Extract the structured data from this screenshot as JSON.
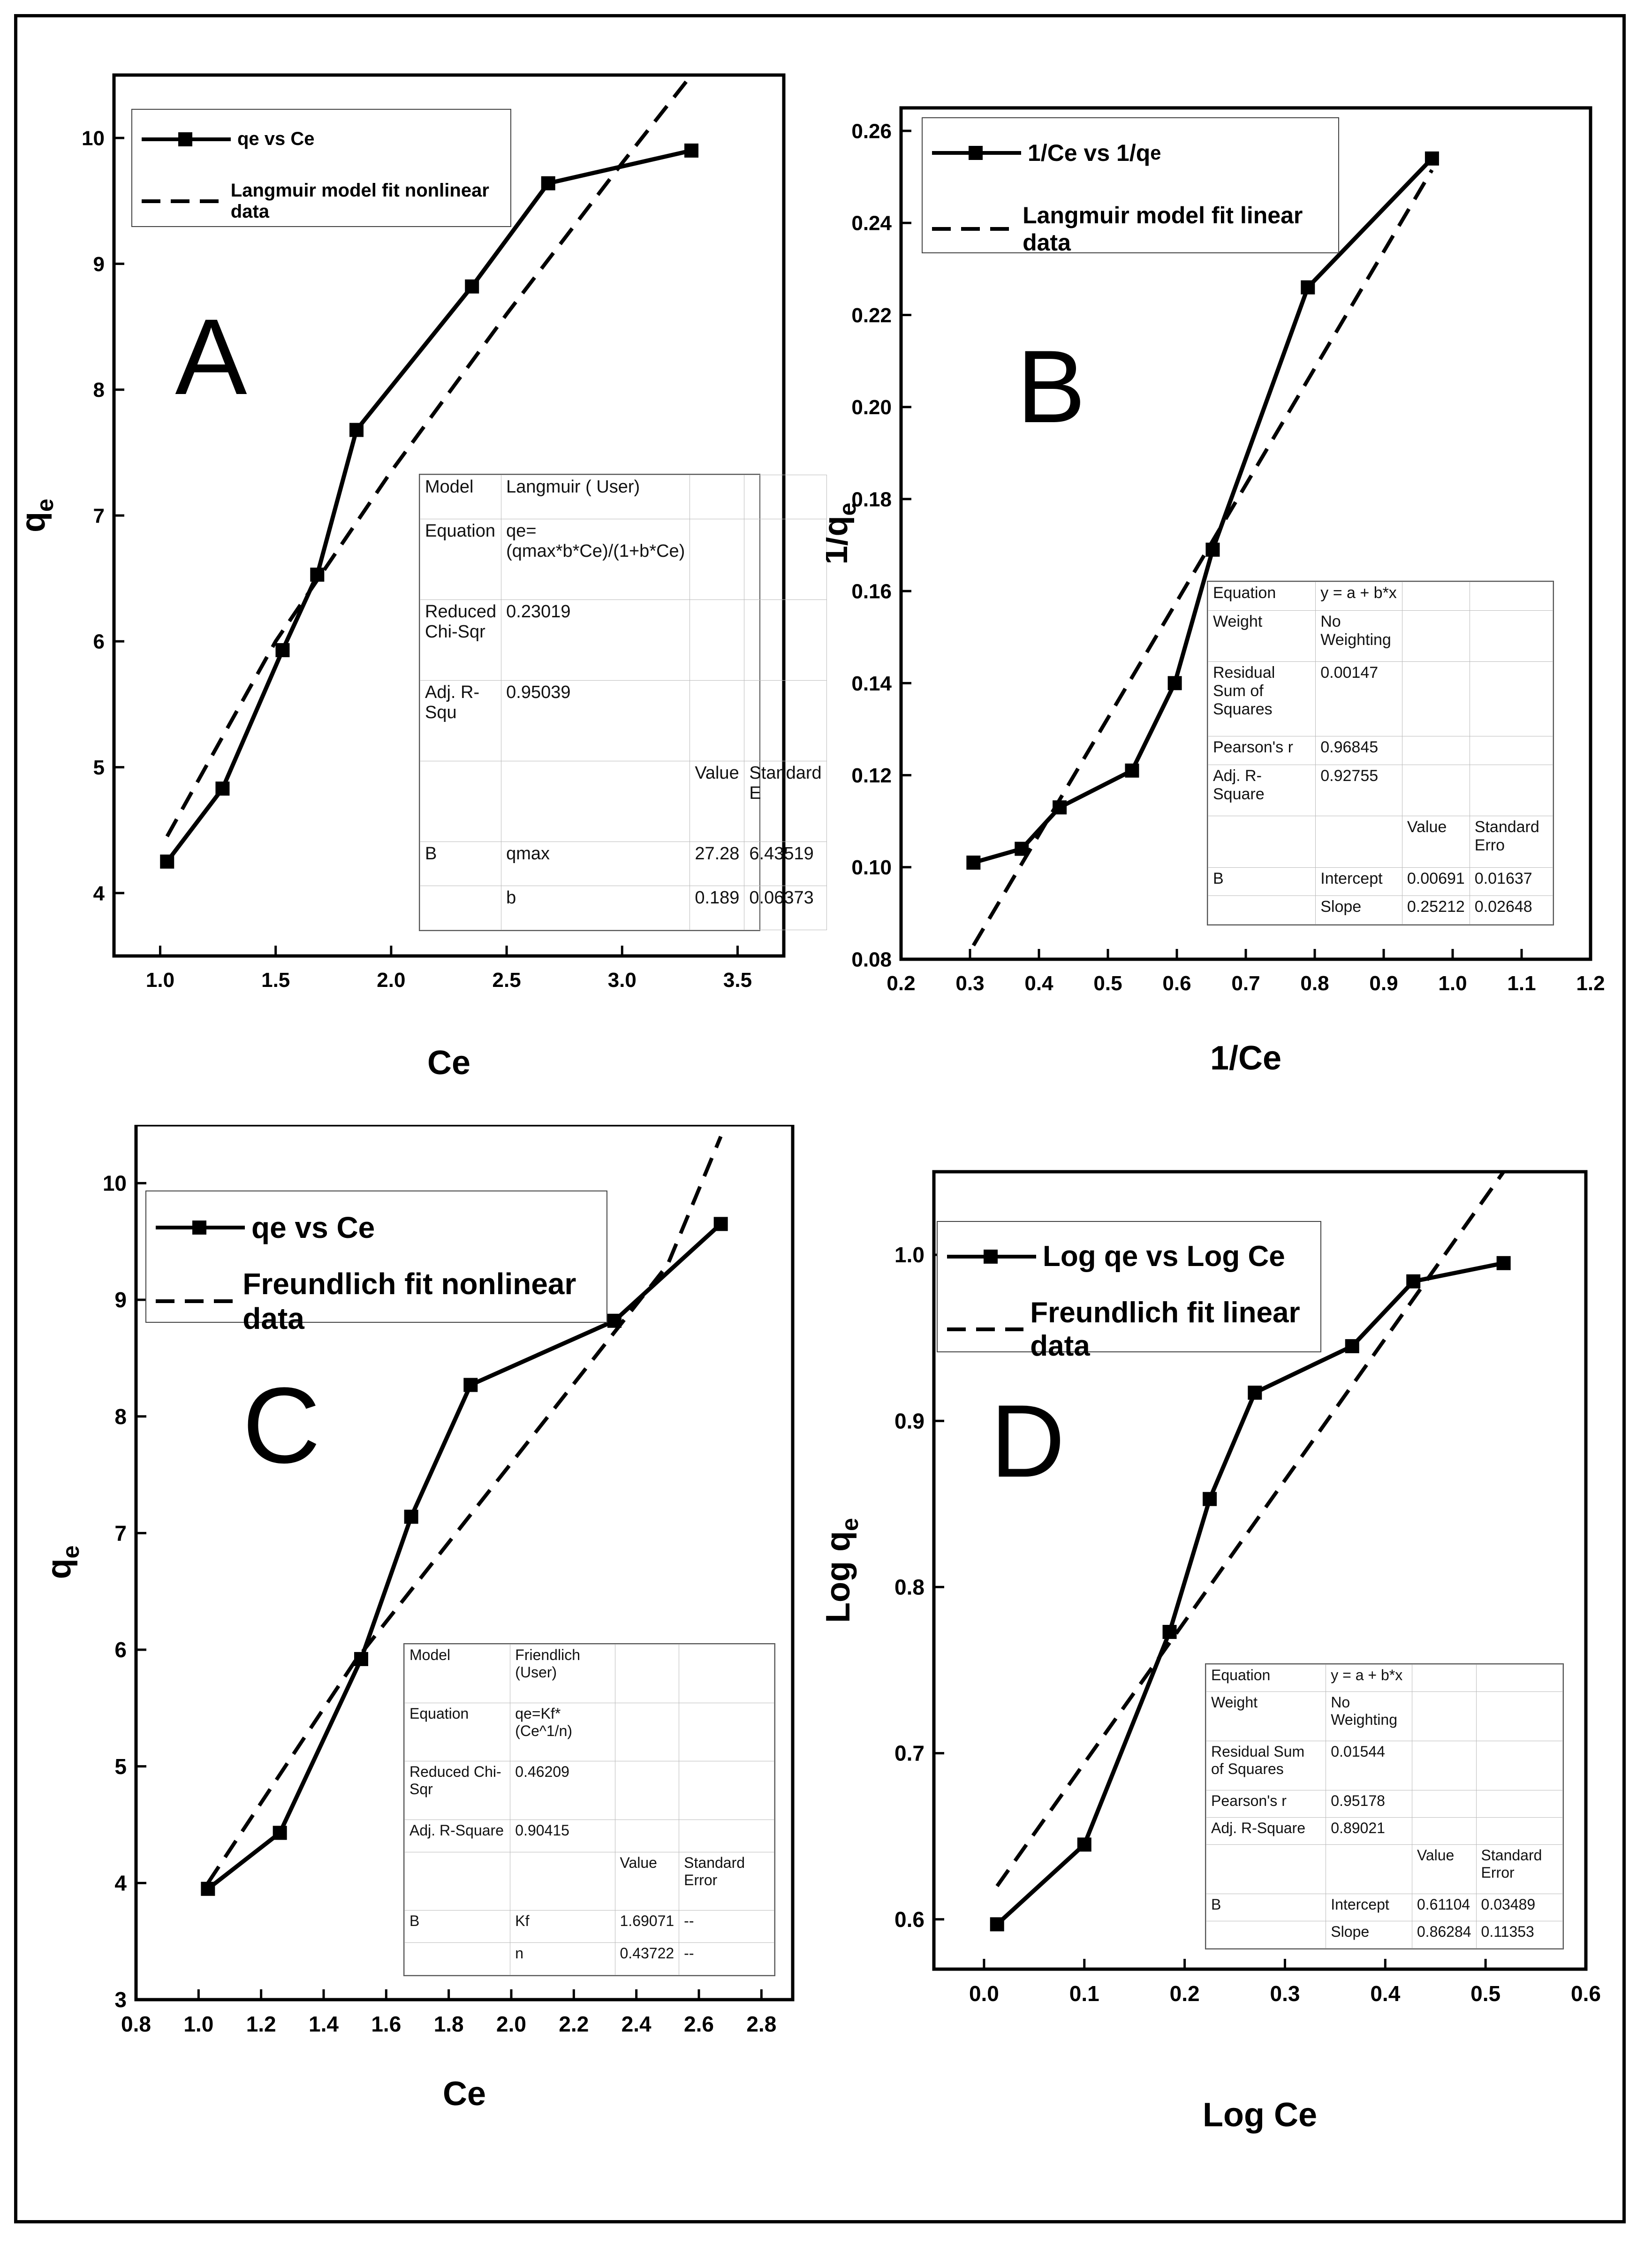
{
  "colors": {
    "line": "#000000",
    "frame": "#000000",
    "background": "#ffffff",
    "table_border": "#bbbbbb"
  },
  "chart_data": [
    {
      "panel": "A",
      "type": "line",
      "xlabel": "Ce",
      "ylabel": "q",
      "ylabel_sub": "e",
      "xlim": [
        0.8,
        3.7
      ],
      "ylim": [
        3.5,
        10.5
      ],
      "xticks": [
        "1.0",
        "1.5",
        "2.0",
        "2.5",
        "3.0",
        "3.5"
      ],
      "xtick_values": [
        1.0,
        1.5,
        2.0,
        2.5,
        3.0,
        3.5
      ],
      "yticks": [
        "4",
        "5",
        "6",
        "7",
        "8",
        "9",
        "10"
      ],
      "ytick_values": [
        4,
        5,
        6,
        7,
        8,
        9,
        10
      ],
      "series": [
        {
          "name": "qe vs Ce",
          "style": "solid-square",
          "x": [
            1.03,
            1.27,
            1.53,
            1.68,
            1.85,
            2.35,
            2.68,
            3.3
          ],
          "y": [
            4.25,
            4.83,
            5.93,
            6.53,
            7.68,
            8.82,
            9.64,
            9.9
          ]
        },
        {
          "name": "Langmuir model fit nonlinear data",
          "style": "dashed",
          "x": [
            1.03,
            1.5,
            2.0,
            2.5,
            3.0,
            3.3
          ],
          "y": [
            4.45,
            6.0,
            7.35,
            8.6,
            9.8,
            10.5
          ]
        }
      ],
      "legend": [
        "qe vs Ce",
        "Langmuir model fit nonlinear data"
      ],
      "stats_table": [
        [
          "Model",
          "Langmuir ( User)",
          "",
          ""
        ],
        [
          "Equation",
          "qe=(qmax*b*Ce)/(1+b*Ce)",
          "",
          ""
        ],
        [
          "Reduced Chi-Sqr",
          "0.23019",
          "",
          ""
        ],
        [
          "Adj. R-Squ",
          "0.95039",
          "",
          ""
        ],
        [
          "",
          "",
          "Value",
          "Standard E"
        ],
        [
          "B",
          "qmax",
          "27.28",
          "6.43519"
        ],
        [
          "",
          "b",
          "0.189",
          "0.06373"
        ]
      ]
    },
    {
      "panel": "B",
      "type": "line",
      "xlabel": "1/Ce",
      "ylabel": "1/q",
      "ylabel_sub": "e",
      "xlim": [
        0.2,
        1.2
      ],
      "ylim": [
        0.08,
        0.265
      ],
      "xticks": [
        "0.2",
        "0.3",
        "0.4",
        "0.5",
        "0.6",
        "0.7",
        "0.8",
        "0.9",
        "1.0",
        "1.1",
        "1.2"
      ],
      "xtick_values": [
        0.2,
        0.3,
        0.4,
        0.5,
        0.6,
        0.7,
        0.8,
        0.9,
        1.0,
        1.1,
        1.2
      ],
      "yticks": [
        "0.08",
        "0.10",
        "0.12",
        "0.14",
        "0.16",
        "0.18",
        "0.20",
        "0.22",
        "0.24",
        "0.26"
      ],
      "ytick_values": [
        0.08,
        0.1,
        0.12,
        0.14,
        0.16,
        0.18,
        0.2,
        0.22,
        0.24,
        0.26
      ],
      "series": [
        {
          "name": "1/Ce vs 1/qe",
          "style": "solid-square",
          "x": [
            0.305,
            0.375,
            0.43,
            0.535,
            0.597,
            0.652,
            0.79,
            0.97
          ],
          "y": [
            0.101,
            0.104,
            0.113,
            0.121,
            0.14,
            0.169,
            0.226,
            0.254
          ]
        },
        {
          "name": "Langmuir model fit linear data",
          "style": "dashed",
          "x": [
            0.305,
            0.97
          ],
          "y": [
            0.083,
            0.2515
          ]
        }
      ],
      "legend": [
        "1/Ce vs 1/q",
        "Langmuir model fit linear data"
      ],
      "legend_sub": "e",
      "stats_table": [
        [
          "Equation",
          "y = a + b*x",
          "",
          ""
        ],
        [
          "Weight",
          "No Weighting",
          "",
          ""
        ],
        [
          "Residual Sum of Squares",
          "0.00147",
          "",
          ""
        ],
        [
          "Pearson's r",
          "0.96845",
          "",
          ""
        ],
        [
          "Adj. R-Square",
          "0.92755",
          "",
          ""
        ],
        [
          "",
          "",
          "Value",
          "Standard Erro"
        ],
        [
          "B",
          "Intercept",
          "0.00691",
          "0.01637"
        ],
        [
          "",
          "Slope",
          "0.25212",
          "0.02648"
        ]
      ]
    },
    {
      "panel": "C",
      "type": "line",
      "xlabel": "Ce",
      "ylabel": "q",
      "ylabel_sub": "e",
      "xlim": [
        0.8,
        2.9
      ],
      "ylim": [
        3.0,
        10.5
      ],
      "xticks": [
        "0.8",
        "1.0",
        "1.2",
        "1.4",
        "1.6",
        "1.8",
        "2.0",
        "2.2",
        "2.4",
        "2.6",
        "2.8"
      ],
      "xtick_values": [
        0.8,
        1.0,
        1.2,
        1.4,
        1.6,
        1.8,
        2.0,
        2.2,
        2.4,
        2.6,
        2.8
      ],
      "yticks": [
        "3",
        "4",
        "5",
        "6",
        "7",
        "8",
        "9",
        "10"
      ],
      "ytick_values": [
        3,
        4,
        5,
        6,
        7,
        8,
        9,
        10
      ],
      "series": [
        {
          "name": "qe vs Ce",
          "style": "solid-square",
          "x": [
            1.03,
            1.26,
            1.52,
            1.68,
            1.87,
            2.33,
            2.67
          ],
          "y": [
            3.95,
            4.43,
            5.92,
            7.14,
            8.27,
            8.82,
            9.65
          ]
        },
        {
          "name": "Freundlich fit nonlinear data",
          "style": "dashed",
          "x": [
            1.03,
            1.5,
            2.0,
            2.5,
            2.67
          ],
          "y": [
            4.0,
            5.9,
            7.6,
            9.3,
            10.4
          ]
        }
      ],
      "legend": [
        "qe vs Ce",
        "Freundlich fit nonlinear data"
      ],
      "stats_table": [
        [
          "Model",
          "Friendlich (User)",
          "",
          ""
        ],
        [
          "Equation",
          "qe=Kf*(Ce^1/n)",
          "",
          ""
        ],
        [
          "Reduced Chi-Sqr",
          "0.46209",
          "",
          ""
        ],
        [
          "Adj. R-Square",
          "0.90415",
          "",
          ""
        ],
        [
          "",
          "",
          "Value",
          "Standard Error"
        ],
        [
          "B",
          "Kf",
          "1.69071",
          "--"
        ],
        [
          "",
          "n",
          "0.43722",
          "--"
        ]
      ]
    },
    {
      "panel": "D",
      "type": "line",
      "xlabel": "Log Ce",
      "ylabel": "Log q",
      "ylabel_sub": "e",
      "xlim": [
        -0.05,
        0.6
      ],
      "ylim": [
        0.57,
        1.05
      ],
      "xticks": [
        "0.0",
        "0.1",
        "0.2",
        "0.3",
        "0.4",
        "0.5",
        "0.6"
      ],
      "xtick_values": [
        0.0,
        0.1,
        0.2,
        0.3,
        0.4,
        0.5,
        0.6
      ],
      "yticks": [
        "0.6",
        "0.7",
        "0.8",
        "0.9",
        "1.0"
      ],
      "ytick_values": [
        0.6,
        0.7,
        0.8,
        0.9,
        1.0
      ],
      "series": [
        {
          "name": "Log qe vs Log Ce",
          "style": "solid-square",
          "x": [
            0.013,
            0.1,
            0.185,
            0.225,
            0.27,
            0.367,
            0.428,
            0.518
          ],
          "y": [
            0.597,
            0.645,
            0.773,
            0.853,
            0.917,
            0.945,
            0.984,
            0.995
          ]
        },
        {
          "name": "Freundlich fit linear data",
          "style": "dashed",
          "x": [
            0.013,
            0.518
          ],
          "y": [
            0.62,
            1.05
          ]
        }
      ],
      "legend": [
        "Log qe vs Log Ce",
        "Freundlich fit linear data"
      ],
      "stats_table": [
        [
          "Equation",
          "y = a + b*x",
          "",
          ""
        ],
        [
          "Weight",
          "No Weighting",
          "",
          ""
        ],
        [
          "Residual Sum of Squares",
          "0.01544",
          "",
          ""
        ],
        [
          "Pearson's r",
          "0.95178",
          "",
          ""
        ],
        [
          "Adj. R-Square",
          "0.89021",
          "",
          ""
        ],
        [
          "",
          "",
          "Value",
          "Standard Error"
        ],
        [
          "B",
          "Intercept",
          "0.61104",
          "0.03489"
        ],
        [
          "",
          "Slope",
          "0.86284",
          "0.11353"
        ]
      ]
    }
  ],
  "panel_letters": [
    "A",
    "B",
    "C",
    "D"
  ]
}
